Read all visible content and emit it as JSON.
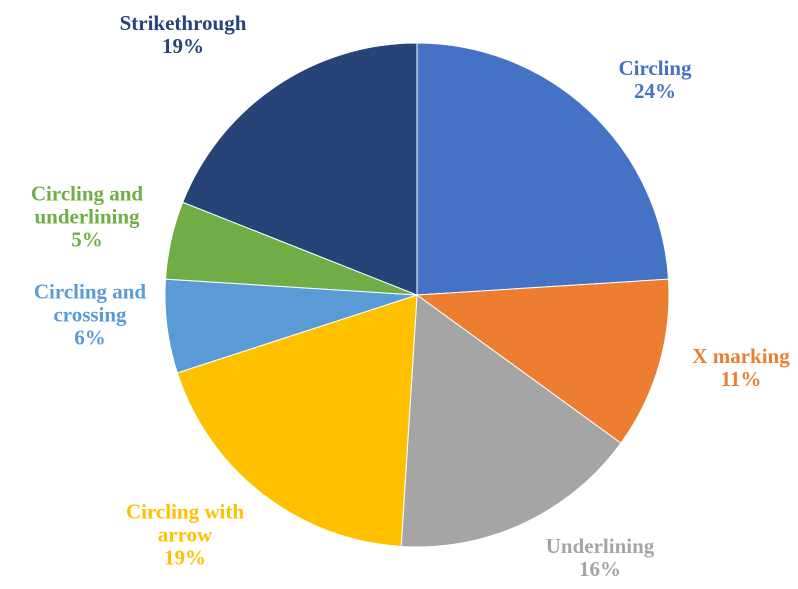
{
  "chart_data": {
    "type": "pie",
    "categories": [
      "Circling",
      "X marking",
      "Underlining",
      "Circling with arrow",
      "Circling and crossing",
      "Circling and underlining",
      "Strikethrough"
    ],
    "values": [
      24,
      11,
      16,
      19,
      6,
      5,
      19
    ],
    "value_labels": [
      "24%",
      "11%",
      "16%",
      "19%",
      "6%",
      "5%",
      "19%"
    ],
    "colors": [
      "#4472c4",
      "#ed7d31",
      "#a5a5a5",
      "#ffc000",
      "#5b9bd5",
      "#70ad47",
      "#264478"
    ]
  }
}
